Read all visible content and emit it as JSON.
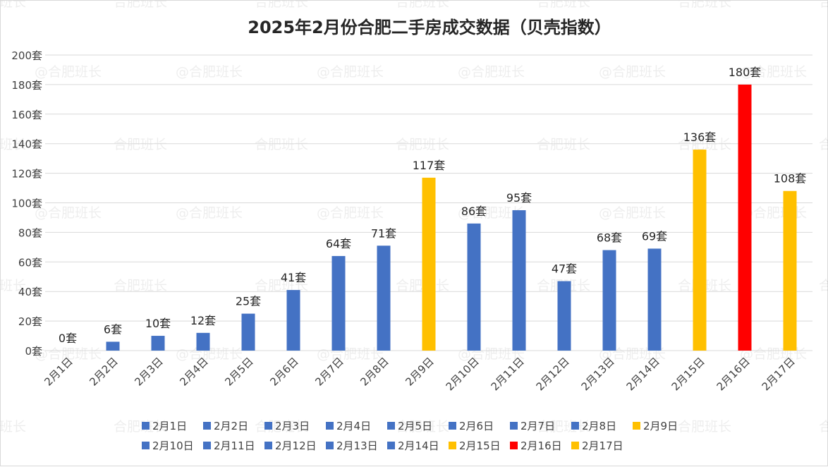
{
  "chart_data": {
    "type": "bar",
    "title": "2025年2月份合肥二手房成交数据（贝壳指数）",
    "unit": "套",
    "categories": [
      "2月1日",
      "2月2日",
      "2月3日",
      "2月4日",
      "2月5日",
      "2月6日",
      "2月7日",
      "2月8日",
      "2月9日",
      "2月10日",
      "2月11日",
      "2月12日",
      "2月13日",
      "2月14日",
      "2月15日",
      "2月16日",
      "2月17日"
    ],
    "values": [
      0,
      6,
      10,
      12,
      25,
      41,
      64,
      71,
      117,
      86,
      95,
      47,
      68,
      69,
      136,
      180,
      108
    ],
    "data_labels": [
      "0套",
      "6套",
      "10套",
      "12套",
      "25套",
      "41套",
      "64套",
      "71套",
      "117套",
      "86套",
      "95套",
      "47套",
      "68套",
      "69套",
      "136套",
      "180套",
      "108套"
    ],
    "colors": [
      "#4472C4",
      "#4472C4",
      "#4472C4",
      "#4472C4",
      "#4472C4",
      "#4472C4",
      "#4472C4",
      "#4472C4",
      "#FFC000",
      "#4472C4",
      "#4472C4",
      "#4472C4",
      "#4472C4",
      "#4472C4",
      "#FFC000",
      "#FF0000",
      "#FFC000"
    ],
    "y_ticks": [
      "0套",
      "20套",
      "40套",
      "60套",
      "80套",
      "100套",
      "120套",
      "140套",
      "160套",
      "180套",
      "200套"
    ],
    "ylim": [
      0,
      200
    ],
    "grid": true,
    "legend_position": "bottom",
    "watermark": "@合肥班长"
  }
}
